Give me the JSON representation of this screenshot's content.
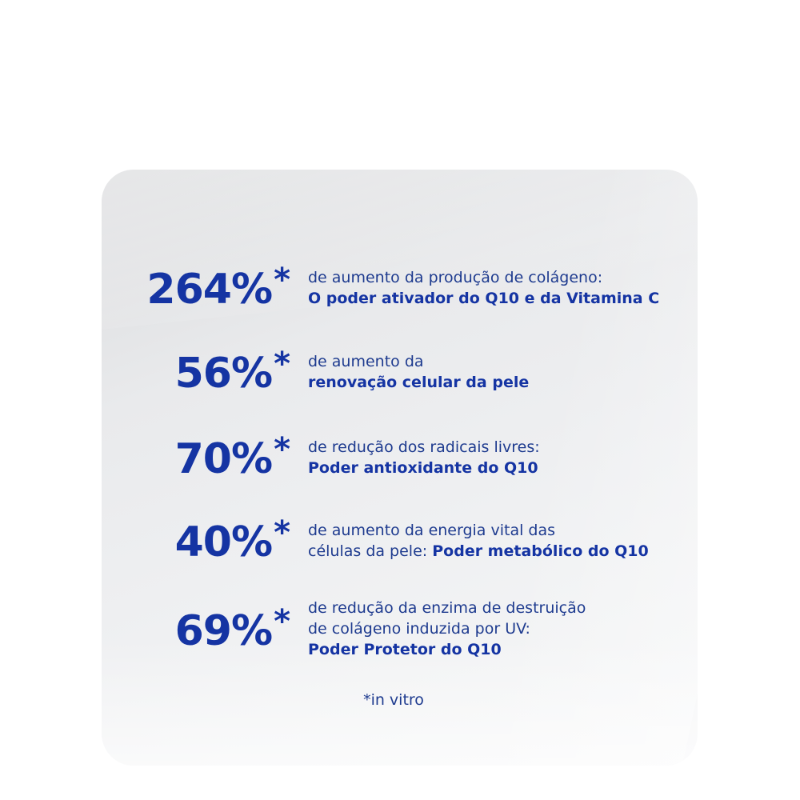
{
  "colors": {
    "accent": "#1534a3",
    "text": "#1e3b8f",
    "card": "#eceded"
  },
  "claims": [
    {
      "value": "264%",
      "mark": "*",
      "line1": "de aumento da produção de colágeno:",
      "bold": "O poder ativador do Q10 e da Vitamina C"
    },
    {
      "value": "56%",
      "mark": "*",
      "line1": "de aumento da",
      "bold": "renovação celular da pele"
    },
    {
      "value": "70%",
      "mark": "*",
      "line1": "de redução dos radicais livres:",
      "bold": "Poder antioxidante do Q10"
    },
    {
      "value": "40%",
      "mark": "*",
      "line1": "de aumento da energia vital das",
      "line2": "células da pele: ",
      "bold": "Poder metabólico do Q10"
    },
    {
      "value": "69%",
      "mark": "*",
      "line1": "de redução da enzima de destruição",
      "line2": "de colágeno induzida por UV:",
      "bold": "Poder Protetor do Q10"
    }
  ],
  "footnote": "*in vitro"
}
